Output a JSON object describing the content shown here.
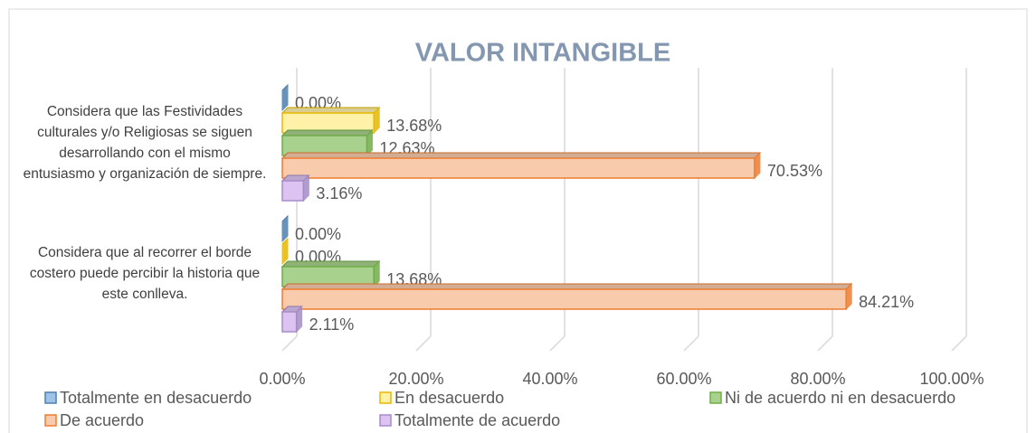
{
  "chart_data": {
    "type": "bar3d_horizontal",
    "title": "VALOR INTANGIBLE",
    "categories": [
      "Considera que las Festividades culturales y/o Religiosas se siguen desarrollando con el mismo entusiasmo y organización de siempre.",
      "Considera que al recorrer el borde costero puede percibir la historia que este conlleva."
    ],
    "series": [
      {
        "name": "Totalmente en desacuerdo",
        "color": "#9dc3e6",
        "edge_color": "#4f7fb0",
        "values": [
          0,
          0
        ],
        "value_labels": [
          "0.00%",
          "0.00%"
        ]
      },
      {
        "name": "En desacuerdo",
        "color": "#fff2a8",
        "edge_color": "#e8b800",
        "values": [
          13.68,
          0
        ],
        "value_labels": [
          "13.68%",
          "0.00%"
        ]
      },
      {
        "name": "Ni de acuerdo ni en desacuerdo",
        "color": "#a9d18e",
        "edge_color": "#70ad47",
        "values": [
          12.63,
          13.68
        ],
        "value_labels": [
          "12.63%",
          "13.68%"
        ]
      },
      {
        "name": "De acuerdo",
        "color": "#f8cbad",
        "edge_color": "#ed7d31",
        "values": [
          70.53,
          84.21
        ],
        "value_labels": [
          "70.53%",
          "84.21%"
        ]
      },
      {
        "name": "Totalmente de acuerdo",
        "color": "#dcc3f2",
        "edge_color": "#a68bc7",
        "values": [
          3.16,
          2.11
        ],
        "value_labels": [
          "3.16%",
          "2.11%"
        ]
      }
    ],
    "xlim": [
      0,
      100
    ],
    "xticks": [
      {
        "value": 0,
        "label": "0.00%"
      },
      {
        "value": 20,
        "label": "20.00%"
      },
      {
        "value": 40,
        "label": "40.00%"
      },
      {
        "value": 60,
        "label": "60.00%"
      },
      {
        "value": 80,
        "label": "80.00%"
      },
      {
        "value": 100,
        "label": "100.00%"
      }
    ],
    "grid": true,
    "legend": "bottom"
  }
}
